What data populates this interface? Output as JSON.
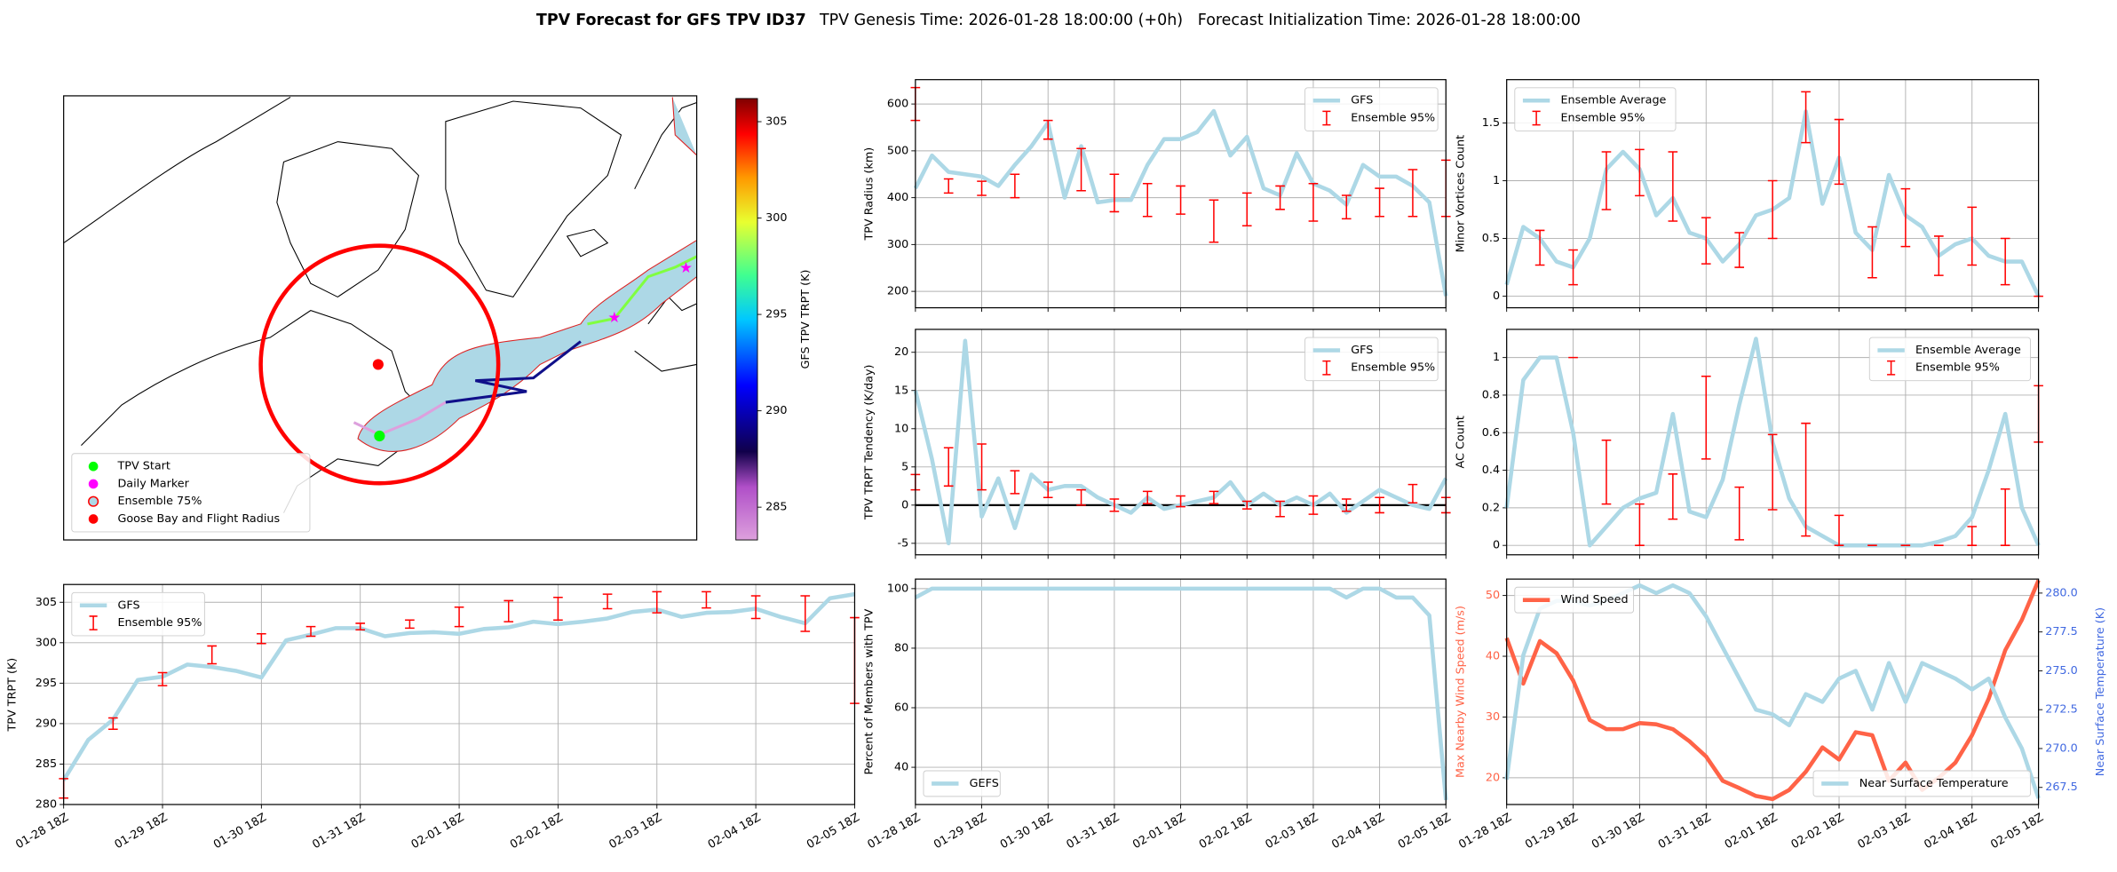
{
  "title": "TPV Forecast for GFS TPV ID37",
  "subtitle": "TPV Genesis Time: 2026-01-28 18:00:00 (+0h)   Forecast Initialization Time: 2026-01-28 18:00:00",
  "chart_data": [
    {
      "type": "map",
      "colorbar_label": "GFS TPV TRPT (K)",
      "clim": [
        283.3,
        306.2
      ],
      "cticks": [
        285,
        290,
        295,
        300,
        305
      ],
      "legend_loc": "lower left",
      "legend": [
        {
          "name": "TPV Start",
          "color": "#00ff00"
        },
        {
          "name": "Daily Marker",
          "color": "#ff00ff"
        },
        {
          "name": "Ensemble 75%",
          "color": "#add8e6"
        },
        {
          "name": "Goose Bay and Flight Radius",
          "color": "#ff0000"
        }
      ]
    },
    {
      "type": "line",
      "ylabel": "TPV TRPT (K)",
      "ylim": [
        280,
        307.2
      ],
      "yticks": [
        280,
        285,
        290,
        295,
        300,
        305
      ],
      "grid": true,
      "legend": "upper left",
      "categories": [
        "01-28 18Z",
        null,
        null,
        null,
        "01-29 18Z",
        null,
        null,
        null,
        "01-30 18Z",
        null,
        null,
        null,
        "01-31 18Z",
        null,
        null,
        null,
        "02-01 18Z",
        null,
        null,
        null,
        "02-02 18Z",
        null,
        null,
        null,
        "02-03 18Z",
        null,
        null,
        null,
        "02-04 18Z",
        null,
        null,
        null,
        "02-05 18Z"
      ],
      "series": [
        {
          "name": "GFS",
          "color": "#add8e6",
          "values": [
            283,
            288,
            290.5,
            295.4,
            295.8,
            297.3,
            297,
            296.5,
            295.7,
            300.3,
            301,
            301.8,
            301.8,
            300.8,
            301.2,
            301.3,
            301.1,
            301.7,
            301.9,
            302.6,
            302.3,
            302.6,
            303,
            303.8,
            304.1,
            303.2,
            303.7,
            303.8,
            304.2,
            303.2,
            302.4,
            305.5,
            306
          ]
        },
        {
          "name": "Ensemble 95%",
          "color": "#ff0000",
          "kind": "errorbar",
          "values": [
            282,
            null,
            290,
            null,
            295.5,
            null,
            298.5,
            null,
            300.5,
            null,
            301.4,
            null,
            302,
            null,
            302.3,
            null,
            303.2,
            null,
            303.9,
            null,
            304.2,
            null,
            305.1,
            null,
            305,
            null,
            305.3,
            null,
            304.4,
            null,
            303.6,
            null,
            297.8
          ],
          "errors": [
            1.2,
            null,
            0.7,
            null,
            0.8,
            null,
            1.1,
            null,
            0.6,
            null,
            0.6,
            null,
            0.4,
            null,
            0.5,
            null,
            1.2,
            null,
            1.3,
            null,
            1.4,
            null,
            0.9,
            null,
            1.3,
            null,
            1,
            null,
            1.4,
            null,
            2.2,
            null,
            5.3
          ]
        }
      ]
    },
    {
      "type": "line",
      "ylabel": "TPV Radius (km)",
      "ylim": [
        165,
        652
      ],
      "yticks": [
        200,
        300,
        400,
        500,
        600
      ],
      "grid": true,
      "legend": "upper right",
      "series": [
        {
          "name": "GFS",
          "color": "#add8e6",
          "values": [
            420,
            490,
            455,
            450,
            445,
            425,
            470,
            510,
            560,
            400,
            510,
            390,
            395,
            395,
            470,
            525,
            525,
            540,
            585,
            490,
            530,
            420,
            405,
            495,
            430,
            415,
            385,
            470,
            445,
            445,
            425,
            390,
            190
          ]
        },
        {
          "name": "Ensemble 95%",
          "color": "#ff0000",
          "kind": "errorbar",
          "values": [
            600,
            null,
            425,
            null,
            420,
            null,
            425,
            null,
            545,
            null,
            460,
            null,
            410,
            null,
            395,
            null,
            395,
            null,
            350,
            null,
            375,
            null,
            400,
            null,
            390,
            null,
            380,
            null,
            390,
            null,
            410,
            null,
            420
          ],
          "errors": [
            35,
            null,
            15,
            null,
            15,
            null,
            25,
            null,
            20,
            null,
            45,
            null,
            40,
            null,
            35,
            null,
            30,
            null,
            45,
            null,
            35,
            null,
            25,
            null,
            40,
            null,
            25,
            null,
            30,
            null,
            50,
            null,
            60
          ]
        }
      ]
    },
    {
      "type": "line",
      "ylabel": "TPV TRPT Tendency (K/day)",
      "ylim": [
        -6.5,
        23
      ],
      "yticks": [
        -5,
        0,
        5,
        10,
        15,
        20
      ],
      "grid": true,
      "legend": "upper right",
      "hline": 0,
      "series": [
        {
          "name": "GFS",
          "color": "#add8e6",
          "values": [
            15,
            6,
            -5,
            21.5,
            -1.5,
            3.5,
            -3,
            4,
            2,
            2.5,
            2.5,
            1,
            0,
            -1,
            1,
            -0.5,
            0,
            0.5,
            1,
            3,
            0,
            1.5,
            0,
            1,
            0,
            1.5,
            -1,
            0.5,
            2,
            1,
            0,
            -0.5,
            3.5
          ]
        },
        {
          "name": "Ensemble 95%",
          "color": "#ff0000",
          "kind": "errorbar",
          "values": [
            3,
            null,
            5,
            null,
            5,
            null,
            3,
            null,
            2,
            null,
            1,
            null,
            0,
            null,
            1,
            null,
            0.5,
            null,
            1,
            null,
            0,
            null,
            -0.5,
            null,
            0,
            null,
            0,
            null,
            0,
            null,
            1.5,
            null,
            0
          ],
          "errors": [
            1,
            null,
            2.5,
            null,
            3,
            null,
            1.5,
            null,
            1,
            null,
            1,
            null,
            0.8,
            null,
            0.8,
            null,
            0.7,
            null,
            0.8,
            null,
            0.5,
            null,
            1,
            null,
            1.2,
            null,
            0.8,
            null,
            1,
            null,
            1.2,
            null,
            1
          ]
        }
      ]
    },
    {
      "type": "line",
      "ylabel": "Percent of Members with TPV",
      "ylim": [
        27.5,
        103.2
      ],
      "yticks": [
        40,
        60,
        80,
        100
      ],
      "grid": true,
      "legend": "lower left",
      "categories": [
        "01-28 18Z",
        null,
        null,
        null,
        "01-29 18Z",
        null,
        null,
        null,
        "01-30 18Z",
        null,
        null,
        null,
        "01-31 18Z",
        null,
        null,
        null,
        "02-01 18Z",
        null,
        null,
        null,
        "02-02 18Z",
        null,
        null,
        null,
        "02-03 18Z",
        null,
        null,
        null,
        "02-04 18Z",
        null,
        null,
        null,
        "02-05 18Z"
      ],
      "series": [
        {
          "name": "GEFS",
          "color": "#add8e6",
          "values": [
            97,
            100,
            100,
            100,
            100,
            100,
            100,
            100,
            100,
            100,
            100,
            100,
            100,
            100,
            100,
            100,
            100,
            100,
            100,
            100,
            100,
            100,
            100,
            100,
            100,
            100,
            97,
            100,
            100,
            97,
            97,
            91,
            29
          ]
        }
      ]
    },
    {
      "type": "line",
      "ylabel": "Minor Vortices Count",
      "ylim": [
        -0.1,
        1.875
      ],
      "yticks": [
        0,
        0.5,
        1,
        1.5
      ],
      "grid": true,
      "legend": "upper left",
      "series": [
        {
          "name": "Ensemble Average",
          "color": "#add8e6",
          "values": [
            0.1,
            0.6,
            0.5,
            0.3,
            0.25,
            0.5,
            1.1,
            1.25,
            1.1,
            0.7,
            0.85,
            0.55,
            0.5,
            0.3,
            0.45,
            0.7,
            0.75,
            0.85,
            1.6,
            0.8,
            1.2,
            0.55,
            0.4,
            1.05,
            0.7,
            0.6,
            0.35,
            0.45,
            0.5,
            0.35,
            0.3,
            0.3,
            0
          ]
        },
        {
          "name": "Ensemble 95%",
          "color": "#ff0000",
          "kind": "errorbar",
          "values": [
            null,
            null,
            0.42,
            null,
            0.25,
            null,
            1,
            null,
            1.07,
            null,
            0.95,
            null,
            0.48,
            null,
            0.4,
            null,
            0.75,
            null,
            1.55,
            null,
            1.25,
            null,
            0.38,
            null,
            0.68,
            null,
            0.35,
            null,
            0.52,
            null,
            0.3,
            null,
            0
          ],
          "errors": [
            null,
            null,
            0.15,
            null,
            0.15,
            null,
            0.25,
            null,
            0.2,
            null,
            0.3,
            null,
            0.2,
            null,
            0.15,
            null,
            0.25,
            null,
            0.22,
            null,
            0.28,
            null,
            0.22,
            null,
            0.25,
            null,
            0.17,
            null,
            0.25,
            null,
            0.2,
            null,
            0
          ]
        }
      ]
    },
    {
      "type": "line",
      "ylabel": "AC Count",
      "ylim": [
        -0.05,
        1.15
      ],
      "yticks": [
        0,
        0.2,
        0.4,
        0.6,
        0.8,
        1
      ],
      "grid": true,
      "legend": "upper right",
      "series": [
        {
          "name": "Ensemble Average",
          "color": "#add8e6",
          "values": [
            0.2,
            0.88,
            1,
            1,
            0.6,
            0,
            0.1,
            0.2,
            0.25,
            0.28,
            0.7,
            0.18,
            0.15,
            0.35,
            0.75,
            1.1,
            0.55,
            0.25,
            0.1,
            0.05,
            0,
            0,
            0,
            0,
            0,
            0,
            0.02,
            0.05,
            0.15,
            0.4,
            0.7,
            0.2,
            0
          ]
        },
        {
          "name": "Ensemble 95%",
          "color": "#ff0000",
          "kind": "errorbar",
          "values": [
            null,
            null,
            null,
            null,
            1,
            null,
            0.39,
            null,
            0.11,
            null,
            0.26,
            null,
            0.68,
            null,
            0.17,
            null,
            0.39,
            null,
            0.35,
            null,
            0.08,
            null,
            0,
            null,
            0,
            null,
            0,
            null,
            0.05,
            null,
            0.15,
            null,
            0.7
          ],
          "errors": [
            null,
            null,
            null,
            null,
            0,
            null,
            0.17,
            null,
            0.11,
            null,
            0.12,
            null,
            0.22,
            null,
            0.14,
            null,
            0.2,
            null,
            0.3,
            null,
            0.08,
            null,
            0,
            null,
            0,
            null,
            0,
            null,
            0.05,
            null,
            0.15,
            null,
            0.15
          ]
        }
      ]
    },
    {
      "type": "dual",
      "ylabel": "Max Nearby Wind Speed (m/s)",
      "ylabel_color": "#ff6347",
      "y2label": "Near Surface Temperature (K)",
      "y2label_color": "#4169e1",
      "ylim": [
        15.6,
        52.7
      ],
      "yticks": [
        20,
        30,
        40,
        50
      ],
      "y2lim": [
        266.4,
        280.9
      ],
      "y2ticks": [
        267.5,
        {
          "value": 270,
          "label": "270.0"
        },
        272.5,
        {
          "value": 275,
          "label": "275.0"
        },
        277.5,
        {
          "value": 280,
          "label": "280.0"
        }
      ],
      "grid": true,
      "legend": "upper left",
      "legend2": "lower right",
      "categories": [
        "01-28 18Z",
        null,
        null,
        null,
        "01-29 18Z",
        null,
        null,
        null,
        "01-30 18Z",
        null,
        null,
        null,
        "01-31 18Z",
        null,
        null,
        null,
        "02-01 18Z",
        null,
        null,
        null,
        "02-02 18Z",
        null,
        null,
        null,
        "02-03 18Z",
        null,
        null,
        null,
        "02-04 18Z",
        null,
        null,
        null,
        "02-05 18Z"
      ],
      "series": [
        {
          "name": "Wind Speed",
          "color": "#ff6347",
          "values": [
            43,
            35.5,
            42.5,
            40.5,
            36,
            29.5,
            28,
            28,
            29,
            28.8,
            28,
            26,
            23.5,
            19.5,
            18.3,
            17,
            16.5,
            18,
            21,
            25,
            23,
            27.5,
            27,
            19.5,
            22.5,
            18,
            20,
            22.5,
            27,
            33,
            41,
            46,
            52.5
          ]
        },
        {
          "name": "Near Surface Temperature",
          "color": "#add8e6",
          "axis": "y2",
          "values": [
            268,
            276,
            279,
            279.5,
            279.5,
            279.2,
            279.5,
            280,
            280.5,
            280,
            280.5,
            280,
            278.5,
            276.5,
            274.5,
            272.5,
            272.2,
            271.5,
            273.5,
            273,
            274.5,
            275,
            272.5,
            275.5,
            273,
            275.5,
            275,
            274.5,
            273.8,
            274.5,
            272,
            270,
            266.8
          ]
        }
      ]
    }
  ]
}
